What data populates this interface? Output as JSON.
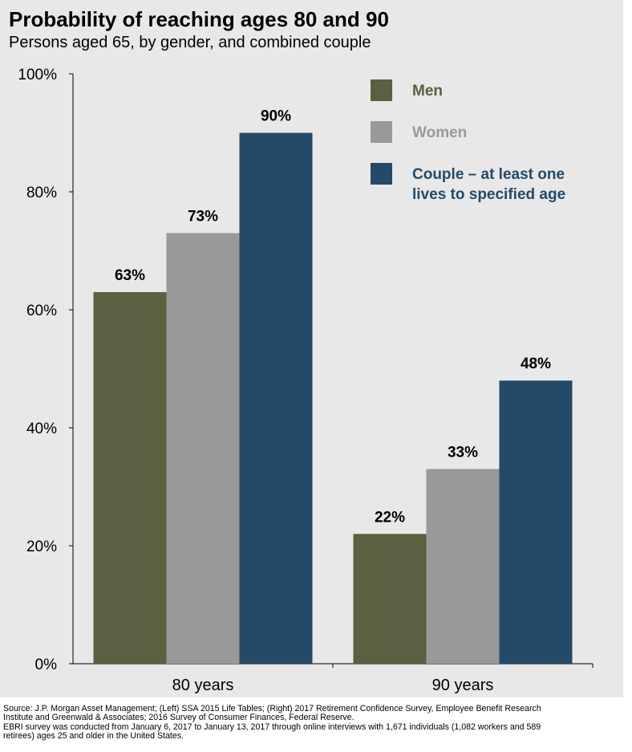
{
  "chart_data": {
    "type": "bar",
    "title": "Probability of reaching ages 80 and 90",
    "subtitle": "Persons aged 65, by gender, and combined couple",
    "categories": [
      "80 years",
      "90 years"
    ],
    "series": [
      {
        "name": "Men",
        "values": [
          63,
          22
        ],
        "labels": [
          "63%",
          "22%"
        ],
        "color": "#5a6040"
      },
      {
        "name": "Women",
        "values": [
          73,
          33
        ],
        "labels": [
          "73%",
          "33%"
        ],
        "color": "#999999"
      },
      {
        "name": "Couple – at least one lives to specified age",
        "name_lines": [
          "Couple – at least one",
          "lives to specified age"
        ],
        "values": [
          90,
          48
        ],
        "labels": [
          "90%",
          "48%"
        ],
        "color": "#244a69"
      }
    ],
    "ylim": [
      0,
      100
    ],
    "yticks": [
      0,
      20,
      40,
      60,
      80,
      100
    ],
    "ytick_labels": [
      "0%",
      "20%",
      "40%",
      "60%",
      "80%",
      "100%"
    ],
    "grid": false,
    "legend_position": "top-right",
    "legend_text_colors": [
      "#5a6040",
      "#999999",
      "#244a69"
    ]
  },
  "source_lines": [
    "Source: J.P. Morgan Asset Management; (Left) SSA 2015 Life Tables; (Right) 2017 Retirement Confidence Survey, Employee Benefit Research",
    "Institute and Greenwald & Associates; 2016 Survey of Consumer Finances, Federal Reserve.",
    "EBRI survey was conducted from January 6, 2017 to January 13, 2017 through online interviews with 1,671 individuals (1,082 workers and 589",
    "retirees) ages 25 and older in the United States."
  ]
}
